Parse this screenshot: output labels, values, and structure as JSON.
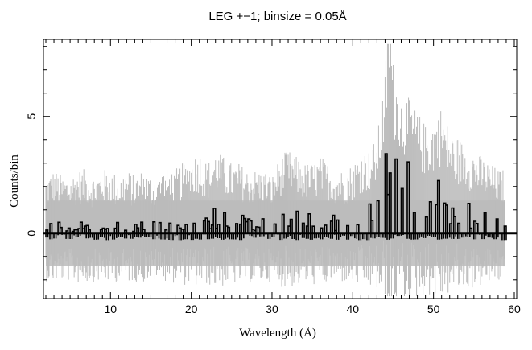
{
  "chart_data": {
    "type": "line",
    "title": "LEG +−1; binsize = 0.05Å",
    "xlabel": "Wavelength (Å)",
    "ylabel": "Counts/bin",
    "xlim": [
      1.7,
      60.3
    ],
    "ylim": [
      -2.8,
      8.3
    ],
    "x_ticks": [
      10,
      20,
      30,
      40,
      50,
      60
    ],
    "y_ticks": [
      0,
      5
    ],
    "grid": false,
    "legend": "none",
    "colors": {
      "counts": "#000000",
      "error_band": "#bbbbbb"
    },
    "series": [
      {
        "style": "step",
        "x": [
          2.0,
          3.0,
          4.0,
          5.0,
          6.0,
          7.0,
          8.0,
          9.0,
          10.0,
          11.0,
          12.0,
          13.0,
          14.0,
          15.0,
          16.0,
          17.0,
          18.0,
          19.0,
          20.0,
          21.0,
          22.0,
          23.0,
          24.0,
          25.0,
          26.0,
          27.0,
          28.0,
          29.0,
          30.0,
          31.0,
          32.0,
          33.0,
          34.0,
          35.0,
          36.0,
          37.0,
          38.0,
          39.0,
          40.0,
          41.0,
          42.0,
          43.0,
          44.0,
          44.5,
          45.0,
          46.0,
          47.0,
          48.0,
          49.0,
          50.0,
          51.0,
          52.0,
          53.0,
          54.0,
          55.0,
          56.0,
          57.0,
          58.0
        ],
        "y": [
          0.2,
          0.3,
          0.2,
          0.2,
          0.3,
          0.3,
          0.2,
          0.3,
          0.3,
          0.2,
          0.3,
          0.2,
          0.3,
          0.2,
          0.3,
          0.3,
          0.3,
          0.4,
          0.5,
          0.6,
          0.4,
          0.6,
          0.5,
          0.4,
          0.4,
          0.3,
          0.3,
          0.3,
          0.2,
          0.5,
          0.6,
          0.5,
          0.4,
          0.4,
          0.5,
          0.4,
          0.3,
          0.3,
          0.4,
          0.6,
          0.6,
          0.8,
          1.8,
          3.2,
          2.0,
          1.5,
          1.4,
          1.2,
          1.0,
          1.1,
          1.3,
          0.9,
          0.8,
          0.7,
          0.6,
          0.5,
          0.4,
          0.3
        ]
      }
    ]
  }
}
